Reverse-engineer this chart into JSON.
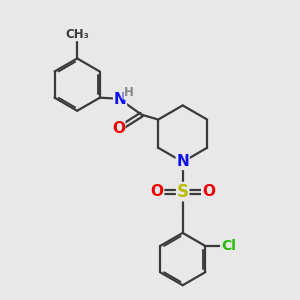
{
  "bg_color": "#e8e8e8",
  "bond_color": "#3a3a3a",
  "bond_width": 1.6,
  "atom_colors": {
    "N": "#1010ee",
    "O": "#ee0000",
    "S": "#bbbb00",
    "Cl": "#22bb00",
    "H": "#888888",
    "C": "#3a3a3a"
  },
  "font_size": 10,
  "fig_size": [
    3.0,
    3.0
  ],
  "dpi": 100
}
